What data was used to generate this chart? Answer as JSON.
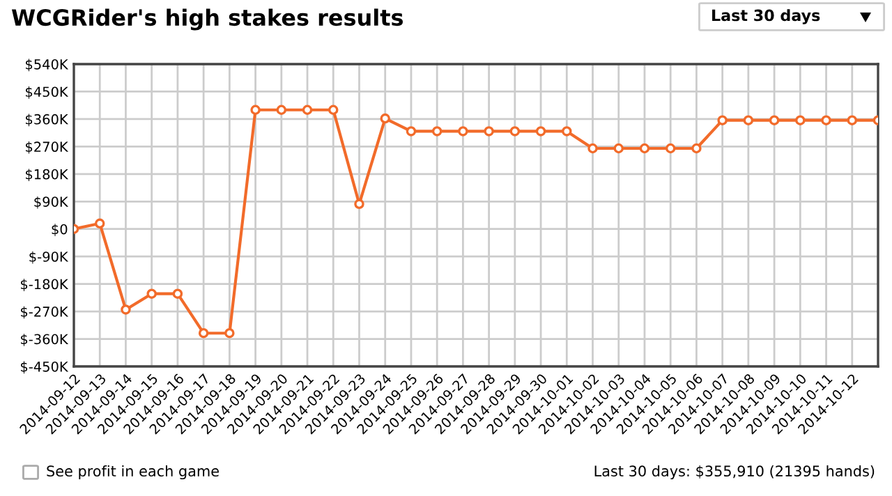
{
  "chart_data": {
    "type": "line",
    "title": "WCGRider's high stakes results",
    "categories": [
      "2014-09-12",
      "2014-09-13",
      "2014-09-14",
      "2014-09-15",
      "2014-09-16",
      "2014-09-17",
      "2014-09-18",
      "2014-09-19",
      "2014-09-20",
      "2014-09-21",
      "2014-09-22",
      "2014-09-23",
      "2014-09-24",
      "2014-09-25",
      "2014-09-26",
      "2014-09-27",
      "2014-09-28",
      "2014-09-29",
      "2014-09-30",
      "2014-10-01",
      "2014-10-02",
      "2014-10-03",
      "2014-10-04",
      "2014-10-05",
      "2014-10-06",
      "2014-10-07",
      "2014-10-08",
      "2014-10-09",
      "2014-10-10",
      "2014-10-11",
      "2014-10-12",
      null
    ],
    "series": [
      {
        "color": "#f26b2a",
        "values": [
          0,
          18,
          -264,
          -212,
          -212,
          -341,
          -341,
          390,
          390,
          390,
          390,
          82,
          362,
          320,
          320,
          320,
          320,
          320,
          320,
          320,
          264,
          264,
          264,
          264,
          264,
          356,
          356,
          356,
          356,
          356,
          356,
          356
        ]
      }
    ],
    "ylim": [
      -450,
      540
    ],
    "yticks": [
      {
        "value": -450,
        "label": "$-450K"
      },
      {
        "value": -360,
        "label": "$-360K"
      },
      {
        "value": -270,
        "label": "$-270K"
      },
      {
        "value": -180,
        "label": "$-180K"
      },
      {
        "value": -90,
        "label": "$-90K"
      },
      {
        "value": 0,
        "label": "$0"
      },
      {
        "value": 90,
        "label": "$90K"
      },
      {
        "value": 180,
        "label": "$180K"
      },
      {
        "value": 270,
        "label": "$270K"
      },
      {
        "value": 360,
        "label": "$360K"
      },
      {
        "value": 450,
        "label": "$450K"
      },
      {
        "value": 540,
        "label": "$540K"
      }
    ],
    "grid": true,
    "marker": "circle",
    "line_style": "solid",
    "legend": false,
    "annotations": [
      "Last 30 days",
      "See profit in each game",
      "Last 30 days: $355,910 (21395 hands)"
    ]
  }
}
